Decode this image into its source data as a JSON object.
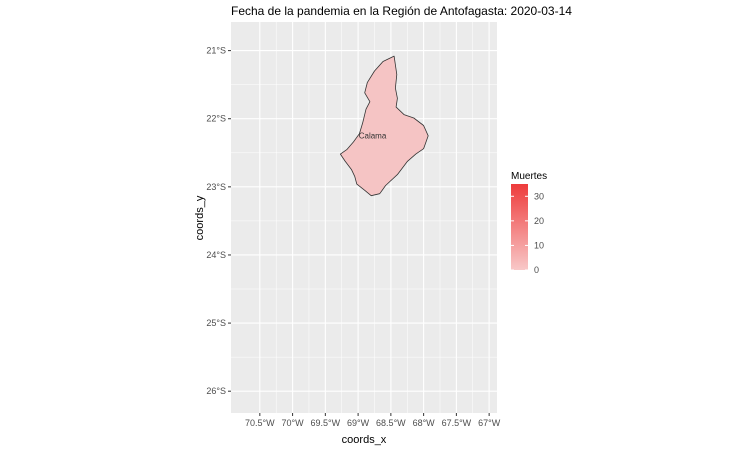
{
  "chart_data": {
    "type": "map",
    "title": "Fecha de la pandemia en la Región de Antofagasta: 2020-03-14",
    "xlabel": "coords_x",
    "ylabel": "coords_y",
    "x_ticks": [
      "70.5°W",
      "70°W",
      "69.5°W",
      "69°W",
      "68.5°W",
      "68°W",
      "67.5°W",
      "67°W"
    ],
    "x_tick_values": [
      -70.5,
      -70.0,
      -69.5,
      -69.0,
      -68.5,
      -68.0,
      -67.5,
      -67.0
    ],
    "y_ticks": [
      "21°S",
      "22°S",
      "23°S",
      "24°S",
      "25°S",
      "26°S"
    ],
    "y_tick_values": [
      -21,
      -22,
      -23,
      -24,
      -25,
      -26
    ],
    "xlim": [
      -70.94,
      -66.88
    ],
    "ylim": [
      -26.32,
      -20.58
    ],
    "regions": [
      {
        "name": "Calama",
        "deaths": 0,
        "fill": "#f5c4c4",
        "label_lon": -68.78,
        "label_lat": -22.29,
        "boundary": [
          [
            -68.45,
            -21.08
          ],
          [
            -68.62,
            -21.16
          ],
          [
            -68.75,
            -21.3
          ],
          [
            -68.86,
            -21.47
          ],
          [
            -68.9,
            -21.62
          ],
          [
            -68.82,
            -21.75
          ],
          [
            -68.88,
            -21.86
          ],
          [
            -68.93,
            -22.06
          ],
          [
            -68.98,
            -22.22
          ],
          [
            -69.07,
            -22.34
          ],
          [
            -69.17,
            -22.45
          ],
          [
            -69.27,
            -22.52
          ],
          [
            -69.2,
            -22.62
          ],
          [
            -69.1,
            -22.75
          ],
          [
            -69.05,
            -22.85
          ],
          [
            -69.02,
            -22.96
          ],
          [
            -68.9,
            -23.05
          ],
          [
            -68.8,
            -23.13
          ],
          [
            -68.67,
            -23.1
          ],
          [
            -68.58,
            -22.98
          ],
          [
            -68.4,
            -22.82
          ],
          [
            -68.25,
            -22.63
          ],
          [
            -68.12,
            -22.52
          ],
          [
            -68.0,
            -22.44
          ],
          [
            -67.93,
            -22.25
          ],
          [
            -68.0,
            -22.1
          ],
          [
            -68.15,
            -21.99
          ],
          [
            -68.3,
            -21.94
          ],
          [
            -68.42,
            -21.83
          ],
          [
            -68.4,
            -21.7
          ],
          [
            -68.43,
            -21.55
          ],
          [
            -68.41,
            -21.35
          ]
        ]
      }
    ],
    "legend": {
      "title": "Muertes",
      "placement": "right",
      "min": 0,
      "max": 35,
      "breaks": [
        0,
        10,
        20,
        30
      ],
      "color_low": "#f8c8c8",
      "color_high": "#ee3b3b"
    },
    "panel_background": "#ebebeb",
    "grid_color": "#ffffff"
  }
}
